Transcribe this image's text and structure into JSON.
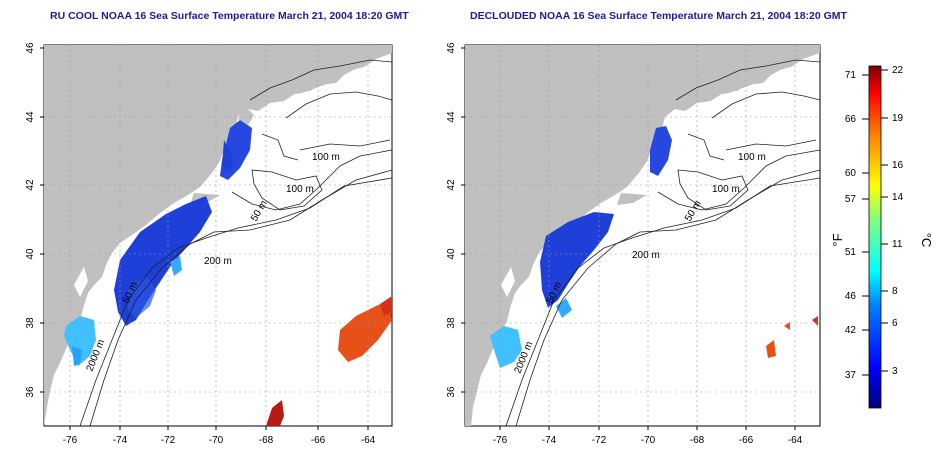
{
  "panels": [
    {
      "title": "RU COOL NOAA 16 Sea Surface Temperature March 21, 2004 18:20 GMT",
      "contour_labels": [
        "100 m",
        "100 m",
        "50 m",
        "200 m",
        "2000 m",
        "50 m"
      ]
    },
    {
      "title": "DECLOUDED NOAA 16 Sea Surface Temperature March 21, 2004 18:20 GMT",
      "contour_labels": [
        "100 m",
        "100 m",
        "50 m",
        "200 m",
        "2000 m",
        "50 m"
      ]
    }
  ],
  "axes": {
    "lon_ticks": [
      "-76",
      "-74",
      "-72",
      "-70",
      "-68",
      "-66",
      "-64"
    ],
    "lat_ticks": [
      "46",
      "44",
      "42",
      "40",
      "38",
      "36"
    ]
  },
  "colorbar": {
    "f_unit": "°F",
    "c_unit": "°C",
    "f_ticks": [
      "71",
      "66",
      "60",
      "57",
      "51",
      "46",
      "42",
      "37"
    ],
    "c_ticks": [
      "22",
      "19",
      "16",
      "14",
      "11",
      "8",
      "6",
      "3"
    ]
  },
  "colors": {
    "land": "#c0c0c0",
    "title": "#1a1aa6",
    "cold": "#1f3fd9",
    "warm": "#e8501a"
  }
}
